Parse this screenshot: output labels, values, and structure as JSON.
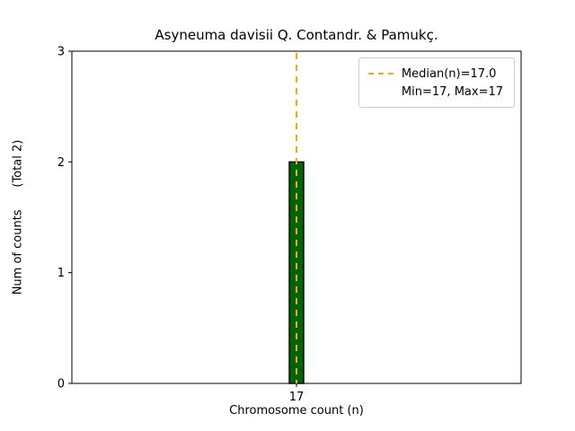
{
  "chart_data": {
    "type": "bar",
    "title": "Asyneuma davisii Q. Contandr. & Pamukç.",
    "xlabel": "Chromosome count (n)",
    "ylabel": "Num of counts      (Total 2)",
    "categories": [
      "17"
    ],
    "values": [
      2
    ],
    "ylim": [
      0,
      3
    ],
    "yticks": [
      0,
      1,
      2,
      3
    ],
    "grid": false,
    "bar_color": "#006400",
    "bar_edge_color": "#000000",
    "median_line": {
      "value": "17",
      "color": "#FFA500",
      "style": "dashed"
    },
    "legend": {
      "position": "top-right",
      "entries": [
        {
          "swatch": "dashed-line",
          "color": "#FFA500",
          "label": "Median(n)=17.0"
        },
        {
          "swatch": "none",
          "label": "Min=17, Max=17"
        }
      ]
    }
  }
}
